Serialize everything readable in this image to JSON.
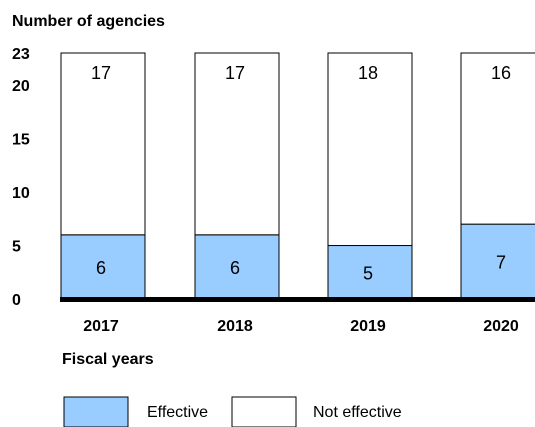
{
  "chart_data": {
    "type": "bar",
    "stacked": true,
    "ylabel": "Number of agencies",
    "xlabel": "Fiscal years",
    "categories": [
      "2017",
      "2018",
      "2019",
      "2020"
    ],
    "yticks": [
      0,
      5,
      10,
      15,
      20,
      23
    ],
    "ylim": [
      0,
      23
    ],
    "series": [
      {
        "name": "Effective",
        "values": [
          6,
          6,
          5,
          7
        ],
        "color": "#99ccff"
      },
      {
        "name": "Not effective",
        "values": [
          17,
          17,
          18,
          16
        ],
        "color": "#ffffff"
      }
    ],
    "legend_position": "bottom",
    "grid": false
  }
}
